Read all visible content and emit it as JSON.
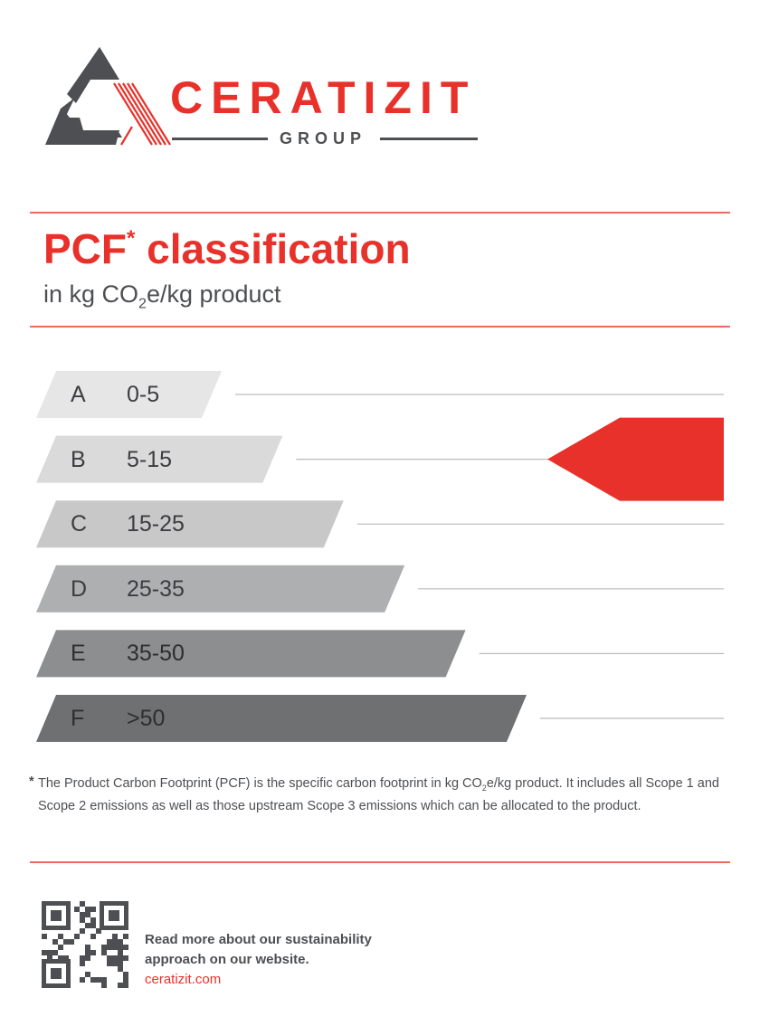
{
  "logo": {
    "name": "CERATIZIT",
    "sub": "GROUP"
  },
  "colors": {
    "brand_red": "#e8312a",
    "dark_grey": "#4d4f53"
  },
  "title": {
    "main": "PCF",
    "asterisk": "*",
    "rest": " classification",
    "subtitle_pre": "in kg CO",
    "subtitle_sub": "2",
    "subtitle_post": "e/kg product"
  },
  "classes": [
    {
      "letter": "A",
      "range": "0-5",
      "color": "#e6e6e7"
    },
    {
      "letter": "B",
      "range": "5-15",
      "color": "#dadadb"
    },
    {
      "letter": "C",
      "range": "15-25",
      "color": "#c8c8c9"
    },
    {
      "letter": "D",
      "range": "25-35",
      "color": "#aeafb0"
    },
    {
      "letter": "E",
      "range": "35-50",
      "color": "#8d8e90"
    },
    {
      "letter": "F",
      "range": ">50",
      "color": "#6f7072"
    }
  ],
  "indicator": {
    "class": "B",
    "color": "#e8312a"
  },
  "footnote": {
    "asterisk": "*",
    "pre": "The Product Carbon Footprint (PCF) is the specific carbon footprint in kg CO",
    "sub": "2",
    "post": "e/kg product. It includes all Scope 1 and Scope 2 emissions as well as those upstream Scope 3 emissions which can be allocated to the product."
  },
  "more": {
    "line1": "Read more about our sustainability",
    "line2": "approach on our website.",
    "link": "ceratizit.com"
  },
  "qr": {
    "icon": "qr-code-icon"
  }
}
